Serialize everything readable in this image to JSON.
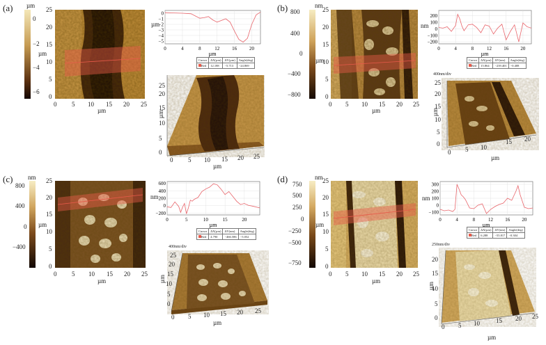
{
  "panels": [
    {
      "label": "(a)",
      "cbar_unit": "µm",
      "cbar_ticks": [
        "0",
        "−2",
        "−4",
        "−6"
      ],
      "afm_yticks": [
        "25",
        "20",
        "15",
        "10",
        "5",
        "0"
      ],
      "afm_xticks": [
        "0",
        "5",
        "10",
        "15",
        "20",
        "25"
      ],
      "afm_unit": "µm",
      "profile": {
        "y_unit": "µm",
        "yticks": [
          "0",
          "−1",
          "−2",
          "−3",
          "−4",
          "−5"
        ],
        "xticks": [
          "0",
          "4",
          "8",
          "12",
          "16",
          "20"
        ],
        "x_unit": "µm",
        "ylim": [
          -5.5,
          0.5
        ],
        "xlim": [
          0,
          22
        ],
        "x": [
          0,
          2,
          4,
          6,
          7,
          8,
          9,
          10,
          11,
          12,
          13,
          14,
          15,
          16,
          17,
          18,
          19,
          20,
          21,
          22
        ],
        "y": [
          0.1,
          0.05,
          0,
          -0.1,
          -0.5,
          -0.9,
          -0.8,
          -0.6,
          -1.2,
          -1.6,
          -1.3,
          -1.0,
          -1.6,
          -3.2,
          -4.7,
          -5.2,
          -4.5,
          -2.0,
          -0.3,
          0.2
        ]
      },
      "table": {
        "headers": [
          "Cursor",
          "ΔX(µm)",
          "ΔY(µm)",
          "Angle(deg)"
        ],
        "row": [
          "Red",
          "12.188",
          "−5.713",
          "−24.869"
        ]
      },
      "view3d": {
        "divlabel": "",
        "yticks": [
          "0",
          "5",
          "10",
          "15",
          "20",
          "25"
        ],
        "xticks": [
          "0",
          "5",
          "10",
          "15",
          "20",
          "25"
        ],
        "unit": "µm"
      }
    },
    {
      "label": "(b)",
      "cbar_unit": "nm",
      "cbar_ticks": [
        "800",
        "400",
        "0",
        "−400",
        "−800"
      ],
      "afm_yticks": [
        "25",
        "20",
        "15",
        "10",
        "5",
        "0"
      ],
      "afm_xticks": [
        "0",
        "5",
        "10",
        "15",
        "20",
        "25"
      ],
      "afm_unit": "µm",
      "profile": {
        "y_unit": "nm",
        "yticks": [
          "200",
          "100",
          "0",
          "−100",
          "−200"
        ],
        "xticks": [
          "0",
          "4",
          "8",
          "12",
          "16",
          "20"
        ],
        "x_unit": "µm",
        "ylim": [
          -230,
          280
        ],
        "xlim": [
          0,
          22
        ],
        "x": [
          0,
          1,
          2,
          3,
          4,
          4.5,
          5,
          5.5,
          6,
          7,
          8,
          9,
          10,
          11,
          12,
          13,
          14,
          15,
          16,
          17,
          18,
          19,
          20,
          21,
          22
        ],
        "y": [
          20,
          10,
          30,
          -40,
          50,
          220,
          150,
          40,
          -30,
          60,
          70,
          20,
          -60,
          60,
          40,
          -80,
          10,
          70,
          -170,
          -40,
          60,
          -200,
          90,
          30,
          10
        ]
      },
      "table": {
        "headers": [
          "Cursor",
          "ΔX(µm)",
          "ΔY(nm)",
          "Angle(deg)"
        ],
        "row": [
          "Red",
          "15.864",
          "−239.401",
          "−0.408"
        ]
      },
      "view3d": {
        "divlabel": "400nm/div",
        "yticks": [
          "0",
          "5",
          "10",
          "15",
          "20",
          "25"
        ],
        "xticks": [
          "0",
          "5",
          "10",
          "15",
          "20"
        ],
        "unit": "µm"
      }
    },
    {
      "label": "(c)",
      "cbar_unit": "nm",
      "cbar_ticks": [
        "800",
        "400",
        "0",
        "−400"
      ],
      "afm_yticks": [
        "25",
        "20",
        "15",
        "10",
        "5",
        "0"
      ],
      "afm_xticks": [
        "0",
        "5",
        "10",
        "15",
        "20",
        "25"
      ],
      "afm_unit": "µm",
      "profile": {
        "y_unit": "nm",
        "yticks": [
          "600",
          "400",
          "200",
          "0",
          "−200"
        ],
        "xticks": [
          "0",
          "5",
          "10",
          "15",
          "20"
        ],
        "x_unit": "µm",
        "ylim": [
          -250,
          650
        ],
        "xlim": [
          0,
          24
        ],
        "x": [
          0,
          1,
          2,
          3,
          3.5,
          4,
          4.5,
          5,
          5.5,
          6,
          6.5,
          7,
          8,
          9,
          10,
          11,
          12,
          13,
          14,
          15,
          16,
          17,
          18,
          19,
          20,
          21,
          22,
          24
        ],
        "y": [
          -30,
          -50,
          100,
          -20,
          -180,
          -40,
          60,
          -220,
          -60,
          150,
          120,
          170,
          220,
          380,
          450,
          500,
          590,
          560,
          440,
          300,
          380,
          250,
          120,
          30,
          60,
          10,
          -10,
          -60
        ]
      },
      "table": {
        "headers": [
          "Cursor",
          "ΔX(µm)",
          "ΔY(nm)",
          "Angle(deg)"
        ],
        "row": [
          "Red",
          "4.790",
          "−466.586",
          "−5.052"
        ]
      },
      "view3d": {
        "divlabel": "400nm/div",
        "yticks": [
          "0",
          "5",
          "10",
          "15",
          "20",
          "25"
        ],
        "xticks": [
          "0",
          "5",
          "10",
          "15",
          "20",
          "25"
        ],
        "unit": "µm"
      }
    },
    {
      "label": "(d)",
      "cbar_unit": "nm",
      "cbar_ticks": [
        "750",
        "500",
        "250",
        "0",
        "−250",
        "−500",
        "−750"
      ],
      "afm_yticks": [
        "25",
        "20",
        "15",
        "10",
        "5",
        "0"
      ],
      "afm_xticks": [
        "0",
        "5",
        "10",
        "15",
        "20",
        "25"
      ],
      "afm_unit": "µm",
      "profile": {
        "y_unit": "nm",
        "yticks": [
          "300",
          "200",
          "100",
          "0",
          "−100"
        ],
        "xticks": [
          "0",
          "4",
          "8",
          "12",
          "16",
          "20"
        ],
        "x_unit": "µm",
        "ylim": [
          -140,
          340
        ],
        "xlim": [
          0,
          22
        ],
        "x": [
          0,
          1,
          2,
          3,
          3.5,
          4,
          4.5,
          5,
          5.5,
          6,
          7,
          8,
          9,
          10,
          11,
          12,
          13,
          14,
          15,
          16,
          17,
          18,
          18.5,
          19,
          20,
          21,
          22
        ],
        "y": [
          -60,
          -80,
          -70,
          -90,
          -60,
          300,
          230,
          150,
          120,
          80,
          -40,
          -50,
          0,
          20,
          -120,
          -60,
          -20,
          10,
          30,
          100,
          70,
          200,
          280,
          150,
          -30,
          -50,
          -40
        ]
      },
      "table": {
        "headers": [
          "Cursor",
          "ΔX(µm)",
          "ΔY(nm)",
          "Angle(deg)"
        ],
        "row": [
          "Red",
          "6.288",
          "−55.817",
          "−0.304"
        ]
      },
      "view3d": {
        "divlabel": "250nm/div",
        "yticks": [
          "0",
          "5",
          "10",
          "15",
          "20"
        ],
        "xticks": [
          "0",
          "5",
          "10",
          "15",
          "20",
          "25"
        ],
        "unit": "µm"
      }
    }
  ],
  "chart_data": [
    {
      "type": "line",
      "title": "(a)",
      "xlabel": "µm",
      "ylabel": "µm",
      "xlim": [
        0,
        22
      ],
      "ylim": [
        -5.5,
        0.5
      ],
      "x": [
        0,
        2,
        4,
        6,
        7,
        8,
        9,
        10,
        11,
        12,
        13,
        14,
        15,
        16,
        17,
        18,
        19,
        20,
        21,
        22
      ],
      "series": [
        {
          "values": [
            0.1,
            0.05,
            0,
            -0.1,
            -0.5,
            -0.9,
            -0.8,
            -0.6,
            -1.2,
            -1.6,
            -1.3,
            -1.0,
            -1.6,
            -3.2,
            -4.7,
            -5.2,
            -4.5,
            -2.0,
            -0.3,
            0.2
          ]
        }
      ]
    },
    {
      "type": "line",
      "title": "(b)",
      "xlabel": "µm",
      "ylabel": "nm",
      "xlim": [
        0,
        22
      ],
      "ylim": [
        -230,
        280
      ],
      "x": [
        0,
        1,
        2,
        3,
        4,
        4.5,
        5,
        5.5,
        6,
        7,
        8,
        9,
        10,
        11,
        12,
        13,
        14,
        15,
        16,
        17,
        18,
        19,
        20,
        21,
        22
      ],
      "series": [
        {
          "values": [
            20,
            10,
            30,
            -40,
            50,
            220,
            150,
            40,
            -30,
            60,
            70,
            20,
            -60,
            60,
            40,
            -80,
            10,
            70,
            -170,
            -40,
            60,
            -200,
            90,
            30,
            10
          ]
        }
      ]
    },
    {
      "type": "line",
      "title": "(c)",
      "xlabel": "µm",
      "ylabel": "nm",
      "xlim": [
        0,
        24
      ],
      "ylim": [
        -250,
        650
      ],
      "x": [
        0,
        1,
        2,
        3,
        3.5,
        4,
        4.5,
        5,
        5.5,
        6,
        6.5,
        7,
        8,
        9,
        10,
        11,
        12,
        13,
        14,
        15,
        16,
        17,
        18,
        19,
        20,
        21,
        22,
        24
      ],
      "series": [
        {
          "values": [
            -30,
            -50,
            100,
            -20,
            -180,
            -40,
            60,
            -220,
            -60,
            150,
            120,
            170,
            220,
            380,
            450,
            500,
            590,
            560,
            440,
            300,
            380,
            250,
            120,
            30,
            60,
            10,
            -10,
            -60
          ]
        }
      ]
    },
    {
      "type": "line",
      "title": "(d)",
      "xlabel": "µm",
      "ylabel": "nm",
      "xlim": [
        0,
        22
      ],
      "ylim": [
        -140,
        340
      ],
      "x": [
        0,
        1,
        2,
        3,
        3.5,
        4,
        4.5,
        5,
        5.5,
        6,
        7,
        8,
        9,
        10,
        11,
        12,
        13,
        14,
        15,
        16,
        17,
        18,
        18.5,
        19,
        20,
        21,
        22
      ],
      "series": [
        {
          "values": [
            -60,
            -80,
            -70,
            -90,
            -60,
            300,
            230,
            150,
            120,
            80,
            -40,
            -50,
            0,
            20,
            -120,
            -60,
            -20,
            10,
            30,
            100,
            70,
            200,
            280,
            150,
            -30,
            -50,
            -40
          ]
        }
      ]
    }
  ],
  "colors": {
    "afm_light": "#f3e6b0",
    "afm_mid": "#b8893e",
    "afm_dark": "#2a160a",
    "profile_line": "#e8646a",
    "roi": "#e85a4a"
  }
}
